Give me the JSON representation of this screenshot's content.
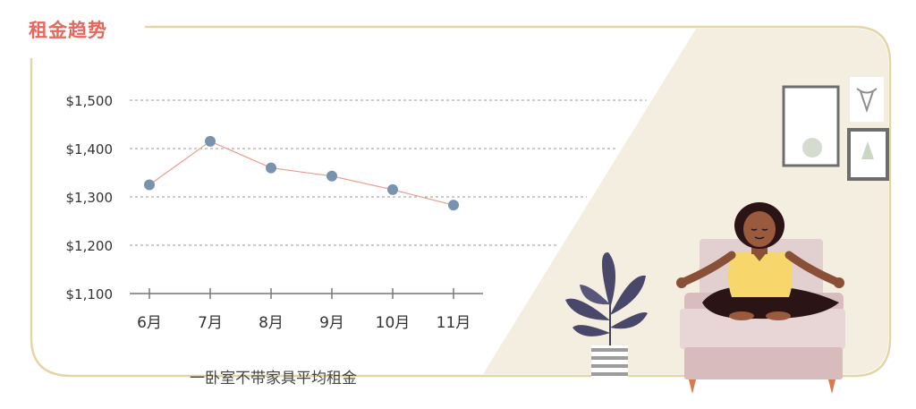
{
  "title": "租金趋势",
  "caption": "一卧室不带家具平均租金",
  "colors": {
    "accent": "#e8665a",
    "frame": "#e2d6a6",
    "line": "#ef9a8f",
    "point": "#7793ad",
    "scene_bg": "#f3eee0"
  },
  "chart_data": {
    "type": "line",
    "categories": [
      "6月",
      "7月",
      "8月",
      "9月",
      "10月",
      "11月"
    ],
    "series": [
      {
        "values": [
          1325,
          1415,
          1360,
          1343,
          1315,
          1283
        ]
      }
    ],
    "ylim": [
      1100,
      1500
    ],
    "yticks": [
      1100,
      1200,
      1300,
      1400,
      1500
    ],
    "ytick_labels": [
      "$1,100",
      "$1,200",
      "$1,300",
      "$1,400",
      "$1,500"
    ],
    "xlabel": "",
    "ylabel": "",
    "grid": "horizontal-dashed"
  },
  "illustration": {
    "subject": "woman-meditating-on-sofa",
    "elements": [
      "potted-plant",
      "moon-phases-frame",
      "bull-skull-frame",
      "mountain-frame",
      "sofa"
    ]
  }
}
